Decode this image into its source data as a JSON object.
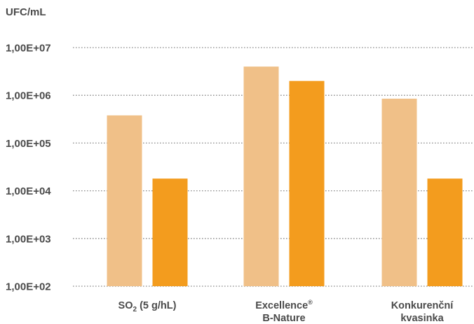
{
  "chart_data": {
    "type": "bar",
    "ylabel": "UFC/mL",
    "yscale": "log",
    "ylim": [
      100,
      10000000
    ],
    "ytick_values": [
      100,
      1000,
      10000,
      100000,
      1000000,
      10000000
    ],
    "ytick_labels": [
      "1,00E+02",
      "1,00E+03",
      "1,00E+04",
      "1,00E+05",
      "1,00E+06",
      "1,00E+07"
    ],
    "grid": true,
    "categories": [
      {
        "main": "SO",
        "sub": "2",
        "rest": " (5 g/hL)"
      },
      {
        "line1": "Excellence",
        "sup": "®",
        "line2": "B-Nature"
      },
      {
        "line1": "Konkurenční",
        "line2": "kvasinka"
      }
    ],
    "series": [
      {
        "values": [
          380000,
          4000000,
          850000
        ]
      },
      {
        "values": [
          18000,
          2000000,
          18000
        ]
      }
    ],
    "colors": [
      "#f0c088",
      "#f39c1e"
    ]
  }
}
